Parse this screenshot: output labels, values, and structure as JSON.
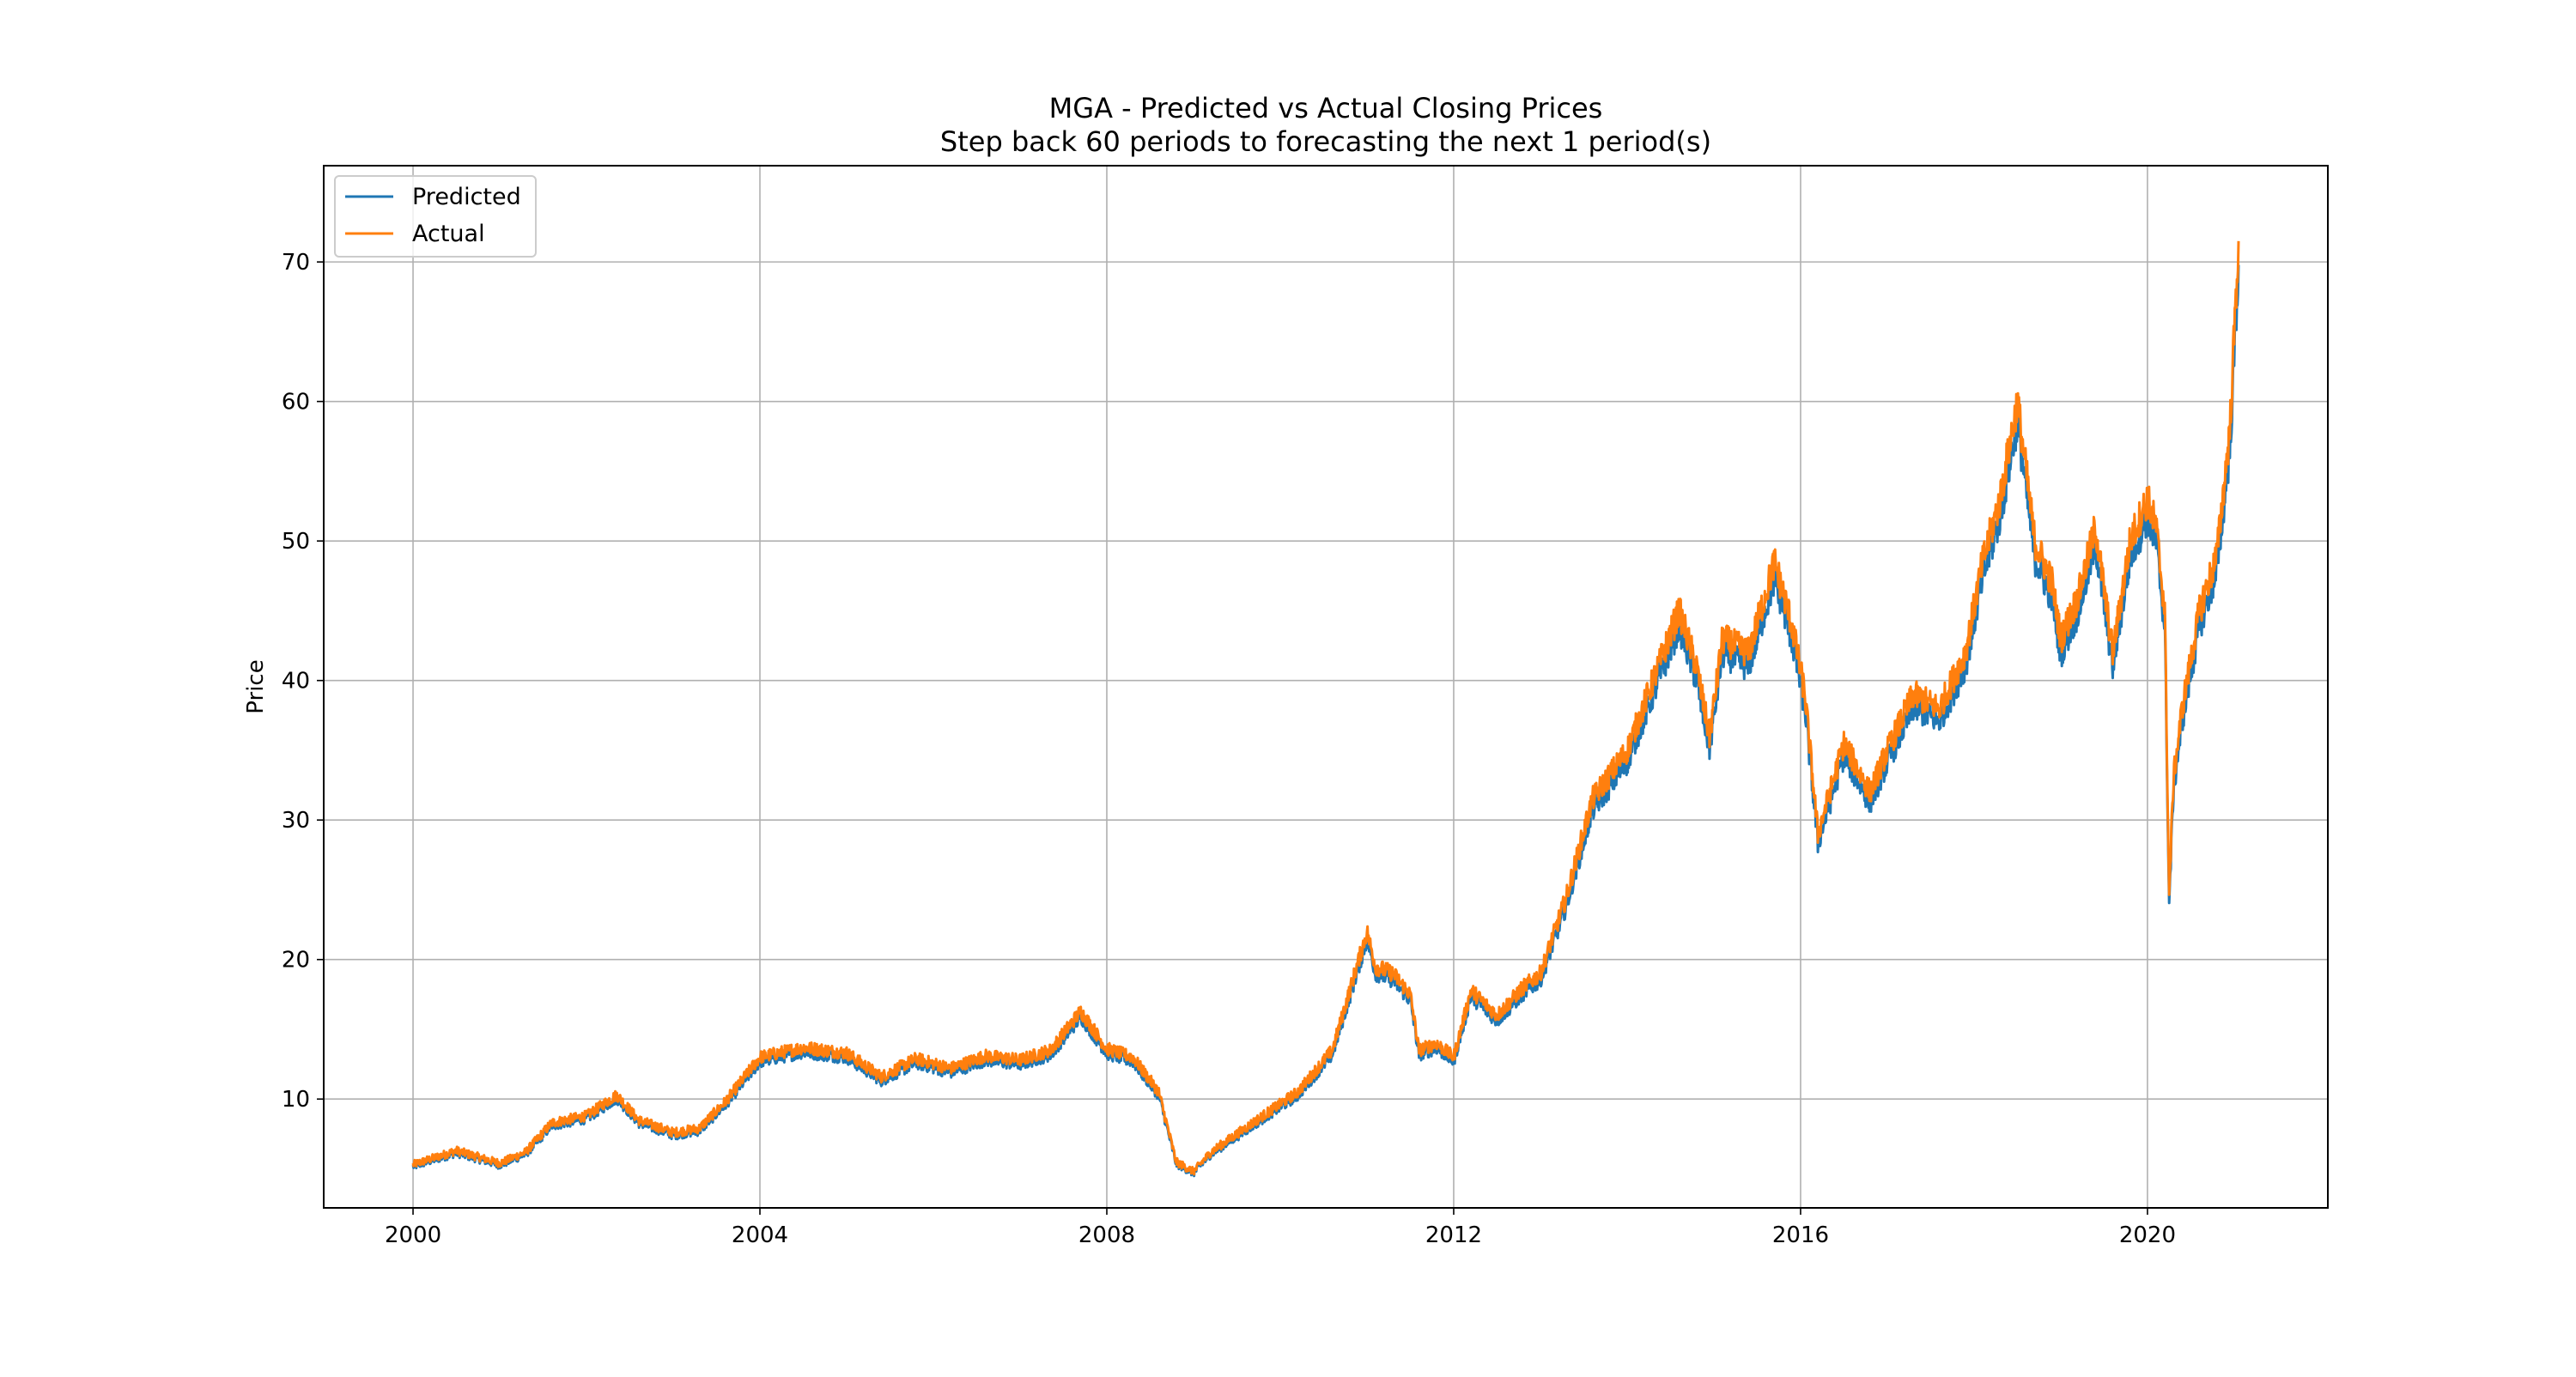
{
  "chart_data": {
    "type": "line",
    "title": "MGA - Predicted vs Actual Closing Prices",
    "subtitle": "Step back 60 periods to forecasting the next 1 period(s)",
    "xlabel": "",
    "ylabel": "Price",
    "xlim": [
      1998.97,
      2022.08
    ],
    "ylim": [
      2.2,
      76.9
    ],
    "xticks": [
      2000,
      2004,
      2008,
      2012,
      2016,
      2020
    ],
    "xtick_labels": [
      "2000",
      "2004",
      "2008",
      "2012",
      "2016",
      "2020"
    ],
    "yticks": [
      10,
      20,
      30,
      40,
      50,
      60,
      70
    ],
    "ytick_labels": [
      "10",
      "20",
      "30",
      "40",
      "50",
      "60",
      "70"
    ],
    "grid": true,
    "legend_position": "upper-left",
    "colors": {
      "predicted": "#1f77b4",
      "actual": "#ff7f0e"
    },
    "series": [
      {
        "name": "Predicted",
        "color": "#1f77b4",
        "offset": -0.6
      },
      {
        "name": "Actual",
        "color": "#ff7f0e",
        "offset": 0.0
      }
    ],
    "x": [
      2000.0,
      2000.5,
      2001.0,
      2001.3,
      2001.6,
      2002.0,
      2002.35,
      2002.6,
      2003.0,
      2003.3,
      2003.6,
      2004.0,
      2004.5,
      2005.0,
      2005.4,
      2005.8,
      2006.2,
      2006.6,
      2007.0,
      2007.35,
      2007.7,
      2008.0,
      2008.3,
      2008.6,
      2008.8,
      2009.0,
      2009.2,
      2009.5,
      2009.8,
      2010.2,
      2010.6,
      2011.0,
      2011.1,
      2011.3,
      2011.5,
      2011.6,
      2011.8,
      2012.0,
      2012.2,
      2012.5,
      2012.8,
      2013.0,
      2013.3,
      2013.6,
      2014.0,
      2014.3,
      2014.6,
      2014.8,
      2014.95,
      2015.1,
      2015.4,
      2015.7,
      2015.9,
      2016.05,
      2016.2,
      2016.5,
      2016.8,
      2017.0,
      2017.3,
      2017.6,
      2017.9,
      2018.1,
      2018.3,
      2018.5,
      2018.7,
      2018.9,
      2019.0,
      2019.2,
      2019.4,
      2019.6,
      2019.8,
      2020.0,
      2020.1,
      2020.2,
      2020.25,
      2020.3,
      2020.4,
      2020.6,
      2020.8,
      2020.95,
      2021.05
    ],
    "y_actual": [
      5.3,
      6.3,
      5.4,
      6.2,
      8.3,
      8.8,
      10.3,
      8.5,
      7.6,
      7.9,
      9.8,
      13.0,
      13.7,
      13.3,
      11.6,
      12.9,
      12.2,
      13.1,
      12.8,
      13.5,
      16.3,
      13.6,
      13.0,
      10.5,
      5.5,
      4.8,
      6.2,
      7.5,
      8.8,
      10.5,
      13.5,
      22.0,
      19.5,
      19.0,
      17.5,
      13.5,
      14.0,
      13.0,
      17.8,
      16.0,
      18.0,
      19.0,
      24.5,
      31.5,
      35.0,
      40.0,
      45.0,
      41.0,
      36.0,
      43.0,
      42.0,
      48.5,
      44.0,
      39.0,
      29.0,
      35.5,
      32.0,
      35.0,
      39.0,
      38.0,
      42.0,
      48.5,
      53.0,
      60.0,
      50.0,
      47.0,
      43.0,
      46.0,
      51.0,
      42.0,
      50.0,
      53.0,
      51.0,
      45.0,
      24.5,
      33.0,
      38.0,
      45.0,
      49.0,
      58.0,
      71.5
    ]
  }
}
